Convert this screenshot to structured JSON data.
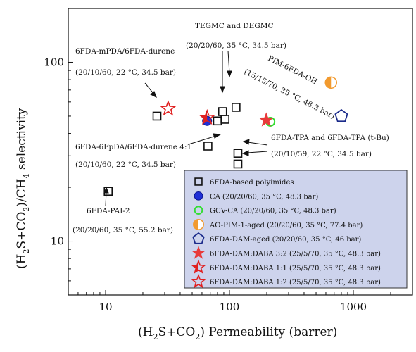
{
  "chart_data": {
    "type": "scatter",
    "xlabel": {
      "pre": "(H",
      "s1": "2",
      "mid": "S+CO",
      "s2": "2",
      "post": ") Permeability (barrer)"
    },
    "ylabel": {
      "pre": "(H",
      "s1": "2",
      "mid": "S+CO",
      "s2": "2",
      "mid2": ")/CH",
      "s3": "4",
      "post": " selectivity"
    },
    "x_scale": "log",
    "y_scale": "log",
    "xlim": [
      5,
      3000
    ],
    "ylim": [
      5,
      200
    ],
    "x_ticks": [
      {
        "value": 10,
        "label": "10"
      },
      {
        "value": 100,
        "label": "100"
      },
      {
        "value": 1000,
        "label": "1000"
      }
    ],
    "y_ticks": [
      {
        "value": 10,
        "label": "10"
      },
      {
        "value": 100,
        "label": "100"
      }
    ],
    "grid": false,
    "legend_position": "bottom-right",
    "series": [
      {
        "name": "6FDA-based polyimides",
        "marker": "square-open",
        "color": "#111111",
        "points": [
          [
            10.5,
            19
          ],
          [
            26,
            50
          ],
          [
            67,
            34
          ],
          [
            80,
            47
          ],
          [
            88,
            53
          ],
          [
            92,
            48
          ],
          [
            113,
            56
          ],
          [
            117,
            31
          ],
          [
            117,
            27
          ]
        ]
      },
      {
        "name": "CA (20/20/60, 35 °C, 48.3 bar)",
        "marker": "circle-filled",
        "color": "#1f2fd6",
        "points": [
          [
            66,
            47
          ]
        ]
      },
      {
        "name": "GCV-CA (20/20/60, 35 °C, 48.3 bar)",
        "marker": "circle-open",
        "color": "#33dd33",
        "points": [
          [
            214,
            46.5
          ]
        ]
      },
      {
        "name": "AO-PIM-1-aged (20/20/60, 35 °C, 77.4 bar)",
        "marker": "circle-half",
        "color": "#f29a2e",
        "points": [
          [
            660,
            77
          ]
        ]
      },
      {
        "name": "6FDA-DAM-aged (20/20/60, 35 °C, 46 bar)",
        "marker": "pentagon-open",
        "color": "#1a2a8a",
        "points": [
          [
            800,
            50
          ]
        ]
      },
      {
        "name": "6FDA-DAM:DABA 3:2 (25/5/70, 35 °C, 48.3 bar)",
        "marker": "star-filled",
        "color": "#e83a3a",
        "points": [
          [
            198,
            47.5
          ]
        ]
      },
      {
        "name": "6FDA-DAM:DABA 1:1 (25/5/70, 35 °C, 48.3 bar)",
        "marker": "star-half",
        "color": "#e02020",
        "points": [
          [
            66,
            49
          ]
        ]
      },
      {
        "name": "6FDA-DAM:DABA 1:2 (25/5/70, 35 °C, 48.3 bar)",
        "marker": "star-open",
        "color": "#e02020",
        "points": [
          [
            32,
            55
          ]
        ]
      }
    ],
    "annotations": [
      {
        "id": "tegmc",
        "lines": [
          "TEGMC and DEGMC",
          "(20/20/60, 35 °C, 34.5 bar)"
        ]
      },
      {
        "id": "mpda",
        "lines": [
          "6FDA-mPDA/6FDA-durene",
          "(20/10/60, 22 °C, 34.5 bar)"
        ]
      },
      {
        "id": "pim",
        "lines": [
          "PIM-6FDA-OH",
          "(15/15/70, 35 °C, 48.3 bar)"
        ]
      },
      {
        "id": "fpda",
        "lines": [
          "6FDA-6FpDA/6FDA-durene 4:1",
          "(20/10/60, 22 °C, 34.5 bar)"
        ]
      },
      {
        "id": "tpa",
        "lines": [
          "6FDA-TPA and 6FDA-TPA (t-Bu)",
          "(20/10/59, 22 °C, 34.5 bar)"
        ]
      },
      {
        "id": "pai",
        "lines": [
          "6FDA-PAI-2",
          "(20/20/60, 35 °C, 55.2 bar)"
        ]
      }
    ]
  }
}
